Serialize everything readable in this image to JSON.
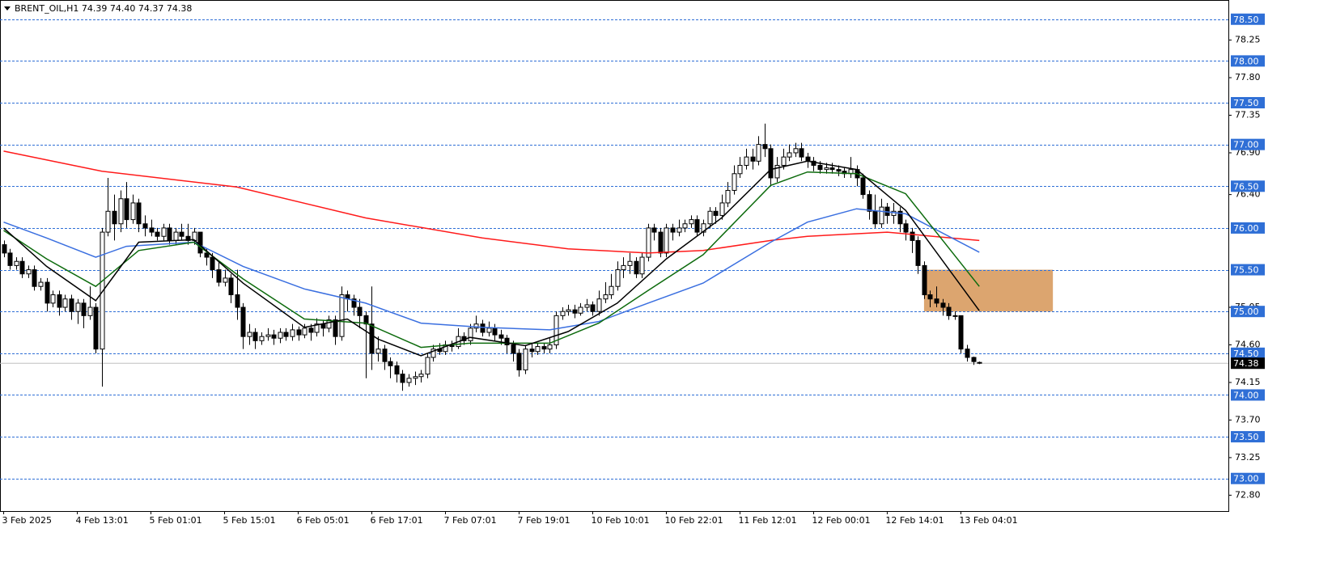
{
  "chart_data": {
    "type": "candlestick",
    "title": "BRENT_OIL,H1  74.39 74.40 74.37 74.38",
    "xlim": [
      -0.6,
      199.6
    ],
    "ylim": [
      72.61,
      78.73
    ],
    "xticks": [
      {
        "value": 0,
        "label": "3 Feb 2025"
      },
      {
        "value": 12,
        "label": "4 Feb 13:01"
      },
      {
        "value": 24,
        "label": "5 Feb 01:01"
      },
      {
        "value": 36,
        "label": "5 Feb 15:01"
      },
      {
        "value": 48,
        "label": "6 Feb 05:01"
      },
      {
        "value": 60,
        "label": "6 Feb 17:01"
      },
      {
        "value": 72,
        "label": "7 Feb 07:01"
      },
      {
        "value": 84,
        "label": "7 Feb 19:01"
      },
      {
        "value": 96,
        "label": "10 Feb 10:01"
      },
      {
        "value": 108,
        "label": "10 Feb 22:01"
      },
      {
        "value": 120,
        "label": "11 Feb 12:01"
      },
      {
        "value": 132,
        "label": "12 Feb 00:01"
      },
      {
        "value": 144,
        "label": "12 Feb 14:01"
      },
      {
        "value": 156,
        "label": "13 Feb 04:01"
      }
    ],
    "yticks": [
      78.25,
      {
        "value": 77.8,
        "label": "77.80"
      },
      77.35,
      {
        "value": 76.9,
        "label": "76.90"
      },
      {
        "value": 76.4,
        "label": "76.40"
      },
      75.05,
      {
        "value": 74.6,
        "label": "74.60"
      },
      74.15,
      {
        "value": 73.7,
        "label": "73.70"
      },
      73.25,
      {
        "value": 72.8,
        "label": "72.80"
      }
    ],
    "levels": [
      {
        "value": 78.5,
        "label": "78.50"
      },
      {
        "value": 78.0,
        "label": "78.00"
      },
      {
        "value": 77.5,
        "label": "77.50"
      },
      {
        "value": 77.0,
        "label": "77.00"
      },
      {
        "value": 76.5,
        "label": "76.50"
      },
      {
        "value": 76.0,
        "label": "76.00"
      },
      {
        "value": 75.5,
        "label": "75.50"
      },
      {
        "value": 75.0,
        "label": "75.00"
      },
      {
        "value": 74.5,
        "label": "74.50"
      },
      {
        "value": 74.0,
        "label": "74.00"
      },
      {
        "value": 73.5,
        "label": "73.50"
      },
      {
        "value": 73.0,
        "label": "73.00"
      }
    ],
    "level_color": "#2f6fd6",
    "current_price": 74.38,
    "zone": {
      "x": [
        150,
        171
      ],
      "y": [
        75.0,
        75.5
      ],
      "color": "#dca56f"
    },
    "open": [
      75.8,
      75.7,
      75.55,
      75.6,
      75.45,
      75.5,
      75.3,
      75.35,
      75.1,
      75.2,
      75.05,
      75.15,
      75.0,
      75.1,
      74.95,
      75.05,
      74.55,
      75.95,
      76.2,
      76.05,
      76.35,
      76.1,
      76.3,
      76.05,
      76.0,
      75.95,
      75.9,
      76.0,
      75.85,
      75.95,
      75.9,
      75.85,
      75.95,
      75.7,
      75.65,
      75.5,
      75.35,
      75.4,
      75.2,
      75.05,
      74.7,
      74.75,
      74.65,
      74.7,
      74.72,
      74.68,
      74.75,
      74.7,
      74.78,
      74.72,
      74.8,
      74.75,
      74.85,
      74.8,
      74.9,
      74.7,
      75.2,
      75.15,
      75.05,
      74.95,
      74.85,
      74.5,
      74.55,
      74.4,
      74.35,
      74.25,
      74.15,
      74.2,
      74.22,
      74.25,
      74.45,
      74.55,
      74.52,
      74.6,
      74.58,
      74.7,
      74.65,
      74.8,
      74.85,
      74.75,
      74.8,
      74.72,
      74.68,
      74.6,
      74.5,
      74.3,
      74.55,
      74.52,
      74.58,
      74.55,
      74.6,
      74.95,
      75.0,
      75.02,
      74.98,
      75.05,
      75.08,
      75.0,
      75.15,
      75.2,
      75.3,
      75.5,
      75.55,
      75.6,
      75.45,
      75.65,
      76.0,
      75.95,
      75.7,
      76.0,
      75.95,
      76.0,
      76.05,
      76.1,
      75.95,
      76.05,
      76.2,
      76.15,
      76.3,
      76.45,
      76.65,
      76.75,
      76.85,
      76.8,
      77.0,
      76.95,
      76.6,
      76.75,
      76.85,
      76.9,
      76.95,
      76.85,
      76.8,
      76.75,
      76.7,
      76.72,
      76.7,
      76.68,
      76.65,
      76.7,
      76.6,
      76.4,
      76.2,
      76.05,
      76.25,
      76.15,
      76.2,
      76.05,
      75.95,
      75.85,
      75.55,
      75.2,
      75.15,
      75.1,
      75.05,
      74.95,
      74.95,
      74.55,
      74.45,
      74.39
    ],
    "high": [
      75.85,
      75.75,
      75.65,
      75.65,
      75.55,
      75.55,
      75.4,
      75.4,
      75.25,
      75.25,
      75.2,
      75.2,
      75.15,
      75.15,
      75.3,
      75.1,
      76.0,
      76.6,
      76.4,
      76.45,
      76.55,
      76.4,
      76.35,
      76.15,
      76.1,
      76.0,
      76.05,
      76.05,
      76.0,
      76.05,
      76.05,
      76.0,
      75.95,
      75.75,
      75.7,
      75.6,
      75.5,
      75.45,
      75.5,
      75.1,
      74.85,
      74.8,
      74.75,
      74.8,
      74.78,
      74.8,
      74.8,
      74.85,
      74.82,
      74.85,
      74.85,
      74.92,
      74.9,
      74.95,
      74.95,
      75.3,
      75.25,
      75.2,
      75.15,
      75.0,
      75.3,
      74.7,
      74.6,
      74.45,
      74.4,
      74.3,
      74.25,
      74.28,
      74.3,
      74.5,
      74.6,
      74.62,
      74.65,
      74.65,
      74.8,
      74.75,
      74.85,
      74.95,
      74.9,
      74.88,
      74.85,
      74.78,
      74.72,
      74.65,
      74.55,
      74.6,
      74.62,
      74.62,
      74.62,
      74.68,
      75.0,
      75.05,
      75.08,
      75.08,
      75.1,
      75.15,
      75.12,
      75.25,
      75.35,
      75.45,
      75.6,
      75.65,
      75.7,
      75.65,
      75.7,
      76.05,
      76.05,
      76.0,
      76.05,
      76.05,
      76.1,
      76.1,
      76.15,
      76.15,
      76.1,
      76.25,
      76.25,
      76.4,
      76.55,
      76.75,
      76.85,
      76.95,
      76.95,
      77.1,
      77.25,
      77.0,
      76.85,
      76.95,
      77.0,
      77.02,
      77.02,
      76.9,
      76.85,
      76.8,
      76.78,
      76.78,
      76.75,
      76.72,
      76.85,
      76.75,
      76.65,
      76.45,
      76.4,
      76.35,
      76.3,
      76.3,
      76.25,
      76.1,
      76.0,
      75.9,
      75.6,
      75.25,
      75.3,
      75.15,
      75.1,
      75.0,
      74.95,
      74.6,
      74.46,
      74.4
    ],
    "low": [
      75.65,
      75.5,
      75.5,
      75.4,
      75.4,
      75.25,
      75.25,
      75.0,
      75.05,
      74.95,
      75.0,
      74.9,
      74.85,
      74.8,
      74.9,
      74.5,
      74.1,
      75.9,
      75.85,
      75.95,
      76.0,
      76.05,
      75.95,
      75.9,
      75.9,
      75.85,
      75.85,
      75.8,
      75.8,
      75.85,
      75.8,
      75.8,
      75.65,
      75.55,
      75.4,
      75.3,
      75.3,
      75.1,
      74.9,
      74.55,
      74.6,
      74.55,
      74.6,
      74.65,
      74.6,
      74.62,
      74.65,
      74.65,
      74.65,
      74.68,
      74.65,
      74.7,
      74.7,
      74.75,
      74.6,
      74.65,
      75.0,
      74.95,
      74.8,
      74.2,
      74.3,
      74.4,
      74.3,
      74.2,
      74.15,
      74.05,
      74.1,
      74.12,
      74.15,
      74.2,
      74.4,
      74.48,
      74.48,
      74.52,
      74.55,
      74.6,
      74.6,
      74.75,
      74.7,
      74.7,
      74.65,
      74.6,
      74.5,
      74.4,
      74.22,
      74.25,
      74.45,
      74.48,
      74.5,
      74.5,
      74.55,
      74.9,
      74.95,
      74.92,
      74.95,
      75.0,
      74.95,
      74.95,
      75.1,
      75.15,
      75.25,
      75.4,
      75.45,
      75.4,
      75.4,
      75.6,
      75.85,
      75.65,
      75.65,
      75.85,
      75.9,
      75.95,
      76.0,
      75.9,
      75.9,
      76.0,
      76.05,
      76.1,
      76.25,
      76.4,
      76.6,
      76.7,
      76.7,
      76.75,
      76.85,
      76.5,
      76.55,
      76.7,
      76.8,
      76.85,
      76.8,
      76.72,
      76.68,
      76.65,
      76.65,
      76.65,
      76.62,
      76.6,
      76.6,
      76.5,
      76.35,
      76.1,
      76.0,
      76.0,
      76.05,
      76.05,
      75.95,
      75.85,
      75.7,
      75.45,
      75.15,
      75.05,
      75.05,
      74.95,
      74.9,
      74.9,
      74.5,
      74.4,
      74.36,
      74.37
    ],
    "close": [
      75.7,
      75.55,
      75.6,
      75.45,
      75.5,
      75.3,
      75.35,
      75.1,
      75.2,
      75.05,
      75.15,
      75.0,
      75.1,
      74.95,
      75.05,
      74.55,
      75.95,
      76.2,
      76.05,
      76.35,
      76.1,
      76.3,
      76.05,
      76.0,
      75.95,
      75.9,
      76.0,
      75.85,
      75.95,
      75.9,
      75.85,
      75.95,
      75.7,
      75.65,
      75.5,
      75.35,
      75.4,
      75.2,
      75.05,
      74.7,
      74.75,
      74.65,
      74.7,
      74.72,
      74.68,
      74.75,
      74.7,
      74.78,
      74.72,
      74.8,
      74.75,
      74.85,
      74.8,
      74.9,
      74.7,
      75.2,
      75.15,
      75.05,
      74.95,
      74.85,
      74.5,
      74.55,
      74.4,
      74.35,
      74.25,
      74.15,
      74.2,
      74.22,
      74.25,
      74.45,
      74.55,
      74.52,
      74.6,
      74.58,
      74.7,
      74.65,
      74.8,
      74.85,
      74.75,
      74.8,
      74.72,
      74.68,
      74.6,
      74.5,
      74.3,
      74.55,
      74.52,
      74.58,
      74.55,
      74.6,
      74.95,
      75.0,
      75.02,
      74.98,
      75.05,
      75.08,
      75.0,
      75.15,
      75.2,
      75.3,
      75.5,
      75.55,
      75.6,
      75.45,
      75.65,
      76.0,
      75.95,
      75.7,
      76.0,
      75.95,
      76.0,
      76.05,
      76.1,
      75.95,
      76.05,
      76.2,
      76.15,
      76.3,
      76.45,
      76.65,
      76.75,
      76.85,
      76.8,
      77.0,
      76.95,
      76.6,
      76.75,
      76.85,
      76.9,
      76.95,
      76.85,
      76.8,
      76.75,
      76.7,
      76.72,
      76.7,
      76.68,
      76.65,
      76.7,
      76.6,
      76.4,
      76.2,
      76.05,
      76.25,
      76.15,
      76.2,
      76.05,
      75.95,
      75.85,
      75.55,
      75.2,
      75.15,
      75.1,
      75.05,
      74.95,
      74.95,
      74.55,
      74.45,
      74.4,
      74.38
    ],
    "lines": [
      {
        "color": "#ff1a1a",
        "x": [
          0,
          16,
          38,
          59,
          78,
          92,
          105,
          114,
          125,
          131,
          144,
          159
        ],
        "values": [
          76.92,
          76.68,
          76.49,
          76.12,
          75.88,
          75.75,
          75.7,
          75.73,
          75.85,
          75.9,
          75.95,
          75.85
        ]
      },
      {
        "color": "#3a6fe0",
        "x": [
          0,
          7,
          15,
          20,
          31,
          39,
          49,
          59,
          68,
          78,
          89,
          97,
          105,
          114,
          125,
          131,
          139,
          147,
          159
        ],
        "values": [
          76.07,
          75.88,
          75.65,
          75.78,
          75.83,
          75.54,
          75.27,
          75.1,
          74.86,
          74.81,
          74.78,
          74.88,
          75.1,
          75.34,
          75.83,
          76.07,
          76.23,
          76.17,
          75.71
        ]
      },
      {
        "color": "#0d6b0d",
        "x": [
          0,
          7,
          15,
          22,
          31,
          39,
          49,
          59,
          68,
          76,
          89,
          97,
          105,
          114,
          125,
          131,
          139,
          147,
          159
        ],
        "values": [
          75.97,
          75.63,
          75.3,
          75.73,
          75.83,
          75.39,
          74.91,
          74.86,
          74.57,
          74.62,
          74.62,
          74.86,
          75.25,
          75.68,
          76.51,
          76.67,
          76.65,
          76.41,
          75.3
        ]
      },
      {
        "color": "#000000",
        "x": [
          0,
          7,
          15,
          22,
          31,
          39,
          49,
          56,
          61,
          68,
          76,
          85,
          92,
          100,
          108,
          117,
          125,
          131,
          139,
          147,
          159
        ],
        "values": [
          76.0,
          75.54,
          75.13,
          75.83,
          75.86,
          75.34,
          74.81,
          74.91,
          74.67,
          74.47,
          74.69,
          74.59,
          74.76,
          75.1,
          75.63,
          76.12,
          76.7,
          76.8,
          76.7,
          76.21,
          75.01
        ]
      }
    ]
  }
}
